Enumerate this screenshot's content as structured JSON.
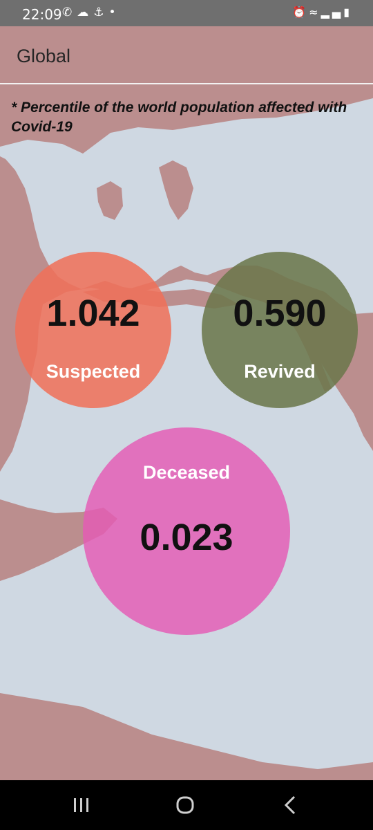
{
  "status_bar": {
    "time": "22:09",
    "left_icons": [
      "whatsapp-icon",
      "cloud-icon",
      "notification-icon",
      "dot-icon"
    ],
    "right_icons": [
      "alarm-icon",
      "wifi-icon",
      "signal-icon",
      "battery-icon"
    ]
  },
  "app_bar": {
    "title": "Global"
  },
  "note": "* Percentile of the world population affected with Covid-19",
  "stats": {
    "suspected": {
      "value": "1.042",
      "label": "Suspected",
      "color": "#f07058"
    },
    "revived": {
      "value": "0.590",
      "label": "Revived",
      "color": "#6c784c"
    },
    "deceased": {
      "value": "0.023",
      "label": "Deceased",
      "color": "#e45ab4"
    }
  },
  "colors": {
    "background": "#bb8e8e",
    "map_land": "#cfd8e2",
    "status_bar": "#6f6f6f"
  },
  "nav_bar": {
    "icons": [
      "recents-icon",
      "home-icon",
      "back-icon"
    ]
  }
}
